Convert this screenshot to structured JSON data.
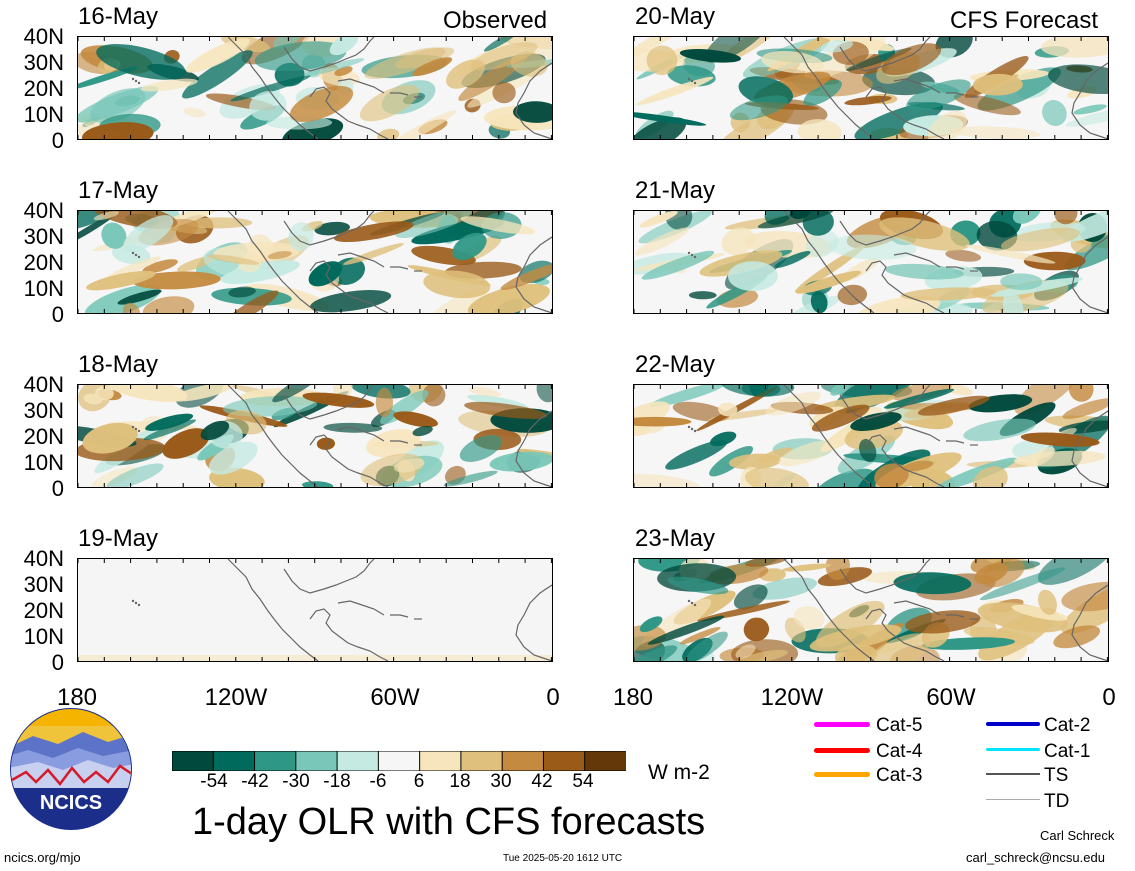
{
  "headers": {
    "observed": "Observed",
    "forecast": "CFS Forecast"
  },
  "observed_panels": [
    {
      "date": "16-May"
    },
    {
      "date": "17-May"
    },
    {
      "date": "18-May"
    },
    {
      "date": "19-May"
    }
  ],
  "forecast_panels": [
    {
      "date": "20-May"
    },
    {
      "date": "21-May"
    },
    {
      "date": "22-May"
    },
    {
      "date": "23-May"
    }
  ],
  "lat_labels": [
    "40N",
    "30N",
    "20N",
    "10N",
    "0"
  ],
  "lon_labels": [
    "180",
    "120W",
    "60W",
    "0"
  ],
  "colorbar": {
    "labels": [
      "-54",
      "-42",
      "-30",
      "-18",
      "-6",
      "6",
      "18",
      "30",
      "42",
      "54"
    ],
    "colors": [
      "#00493c",
      "#006a5c",
      "#2f9786",
      "#78c7b8",
      "#c5eae2",
      "#f6f6f6",
      "#f6e5bd",
      "#dfc07c",
      "#c48a3f",
      "#9a5a18",
      "#643808"
    ],
    "units": "W m-2"
  },
  "title": "1-day OLR with CFS forecasts",
  "logo_text": "NCICS",
  "storm_legend": [
    {
      "label": "Cat-5",
      "color": "#ff00ff"
    },
    {
      "label": "Cat-4",
      "color": "#ff0000"
    },
    {
      "label": "Cat-3",
      "color": "#ffa500"
    },
    {
      "label": "Cat-2",
      "color": "#0000cd"
    },
    {
      "label": "Cat-1",
      "color": "#00e5ff"
    },
    {
      "label": "TS",
      "color": "#555555"
    },
    {
      "label": "TD",
      "color": "#aaaaaa"
    }
  ],
  "footer": {
    "url": "ncics.org/mjo",
    "timestamp": "Tue 2025-05-20 1612 UTC",
    "author": "Carl Schreck",
    "email": "carl_schreck@ncsu.edu"
  }
}
